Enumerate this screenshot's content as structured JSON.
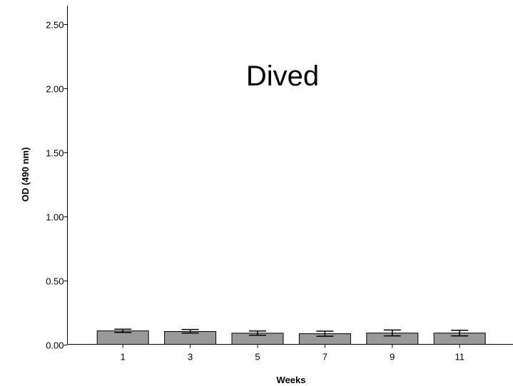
{
  "chart_data": {
    "type": "bar",
    "annotation": "Dived",
    "xlabel": "Weeks",
    "ylabel": "OD (490 nm)",
    "categories": [
      "1",
      "3",
      "5",
      "7",
      "9",
      "11"
    ],
    "values": [
      0.105,
      0.1,
      0.087,
      0.083,
      0.088,
      0.088
    ],
    "error_low": [
      0.093,
      0.088,
      0.071,
      0.063,
      0.066,
      0.066
    ],
    "error_high": [
      0.118,
      0.116,
      0.104,
      0.103,
      0.112,
      0.11
    ],
    "ylim": [
      0,
      2.6
    ],
    "yticks": [
      0,
      0.5,
      1.0,
      1.5,
      2.0,
      2.5
    ],
    "ytick_labels": [
      "0.00",
      "0.50",
      "1.00",
      "1.50",
      "2.00",
      "2.50"
    ],
    "grid": false,
    "legend": "none",
    "bar_color": "#999999",
    "edge_color": "#000000"
  }
}
